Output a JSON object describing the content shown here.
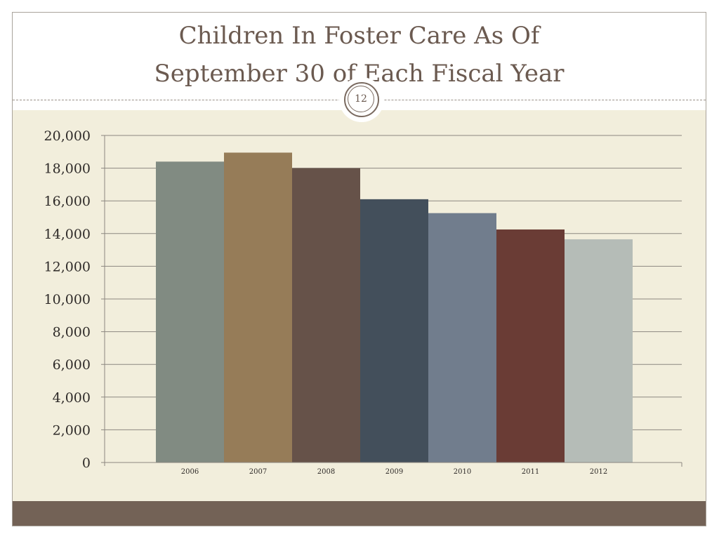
{
  "slide": {
    "title_line1": "Children In Foster Care As Of",
    "title_line2": "September 30 of Each Fiscal Year",
    "page_number": "12"
  },
  "colors": {
    "background": "#f2eedc",
    "footer": "#736256",
    "title_text": "#6b5a50",
    "gridline": "#8c8780"
  },
  "chart_data": {
    "type": "bar",
    "title": "",
    "xlabel": "",
    "ylabel": "",
    "ylim": [
      0,
      20000
    ],
    "yticks": [
      0,
      2000,
      4000,
      6000,
      8000,
      10000,
      12000,
      14000,
      16000,
      18000,
      20000
    ],
    "ytick_labels": [
      "0",
      "2,000",
      "4,000",
      "6,000",
      "8,000",
      "10,000",
      "12,000",
      "14,000",
      "16,000",
      "18,000",
      "20,000"
    ],
    "categories": [
      "2006",
      "2007",
      "2008",
      "2009",
      "2010",
      "2011",
      "2012"
    ],
    "values": [
      18400,
      18950,
      18000,
      16100,
      15250,
      14250,
      13650
    ],
    "bar_colors": [
      "#818b82",
      "#967c58",
      "#665249",
      "#434f5b",
      "#717d8d",
      "#6a3c35",
      "#b5bcb7"
    ],
    "grid": true,
    "legend": false
  }
}
